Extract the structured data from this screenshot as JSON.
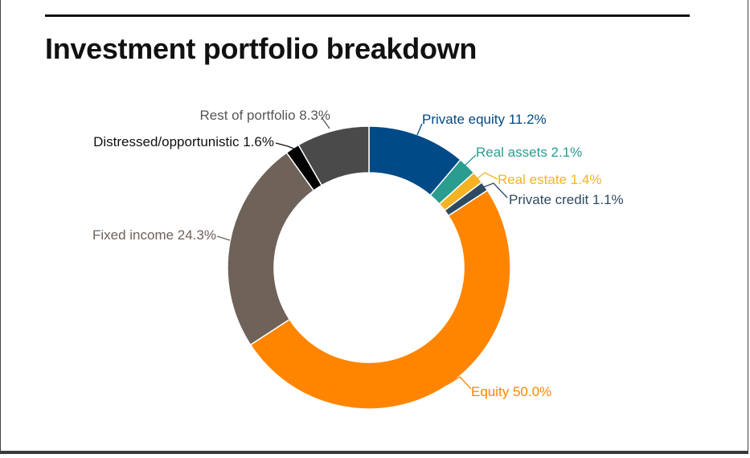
{
  "title": "Investment portfolio breakdown",
  "chart_data": {
    "type": "donut",
    "title": "Investment portfolio breakdown",
    "series": [
      {
        "name": "Private equity",
        "value": 11.2,
        "label": "Private equity 11.2%",
        "color": "#004a87"
      },
      {
        "name": "Real assets",
        "value": 2.1,
        "label": "Real assets 2.1%",
        "color": "#2a9d8f"
      },
      {
        "name": "Real estate",
        "value": 1.4,
        "label": "Real estate 1.4%",
        "color": "#f5b324"
      },
      {
        "name": "Private credit",
        "value": 1.1,
        "label": "Private credit 1.1%",
        "color": "#2e4a62"
      },
      {
        "name": "Equity",
        "value": 50.0,
        "label": "Equity 50.0%",
        "color": "#ff8500"
      },
      {
        "name": "Fixed income",
        "value": 24.3,
        "label": "Fixed income 24.3%",
        "color": "#6e6259"
      },
      {
        "name": "Distressed/opportunistic",
        "value": 1.6,
        "label": "Distressed/opportunistic 1.6%",
        "color": "#000000"
      },
      {
        "name": "Rest of portfolio",
        "value": 8.3,
        "label": "Rest of portfolio 8.3%",
        "color": "#4a4a4a"
      }
    ],
    "label_colors": {
      "Private equity": "#004a87",
      "Real assets": "#2a9d8f",
      "Real estate": "#f5b324",
      "Private credit": "#2e4a62",
      "Equity": "#ff8500",
      "Fixed income": "#6e6259",
      "Distressed/opportunistic": "#111111",
      "Rest of portfolio": "#555555"
    }
  }
}
